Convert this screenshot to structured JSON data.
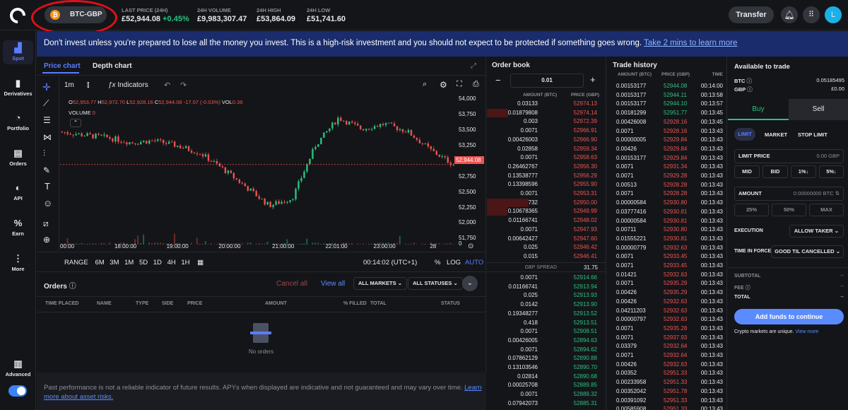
{
  "header": {
    "pair": "BTC-GBP",
    "stats": [
      {
        "label": "LAST PRICE (24H)",
        "value": "£52,944.08",
        "change": "+0.45%"
      },
      {
        "label": "24H VOLUME",
        "value": "£9,983,307.47"
      },
      {
        "label": "24H HIGH",
        "value": "£53,864.09"
      },
      {
        "label": "24H LOW",
        "value": "£51,741.60"
      }
    ],
    "transfer": "Transfer",
    "avatar": "L"
  },
  "nav": [
    "Spot",
    "Derivatives",
    "Portfolio",
    "Orders",
    "API",
    "Earn",
    "More"
  ],
  "nav_advanced": "Advanced",
  "banner": {
    "text": "Don't invest unless you're prepared to lose all the money you invest. This is a high-risk investment and you should not expect to be protected if something goes wrong.",
    "link": "Take 2 mins to learn more"
  },
  "chart": {
    "tabs": [
      "Price chart",
      "Depth chart"
    ],
    "interval": "1m",
    "indicators": "Indicators",
    "ohlc": {
      "o": "52,953.77",
      "h": "52,972.70",
      "l": "52,928.16",
      "c": "52,944.08",
      "chg": "-17.07 (-0.03%)",
      "vol": "0.36"
    },
    "volume_label": "VOLUME",
    "volume_val": "0",
    "price_ticks": [
      "54,000",
      "53,750",
      "53,500",
      "53,250",
      "53,000",
      "52,750",
      "52,500",
      "52,250",
      "52,000",
      "51,750",
      "0"
    ],
    "last_price_tag": "52,944.08",
    "time_ticks": [
      "00:00",
      "18:00:00",
      "19:00:00",
      "20:00:00",
      "21:00:00",
      "22:01:00",
      "23:00:00",
      "28"
    ],
    "ranges": [
      "RANGE",
      "6M",
      "3M",
      "1M",
      "5D",
      "1D",
      "4H",
      "1H"
    ],
    "clock": "00:14:02 (UTC+1)",
    "pct": "%",
    "log": "LOG",
    "auto": "AUTO",
    "chart_data": {
      "type": "line",
      "title": "",
      "xlabel": "",
      "ylabel": "",
      "ylim": [
        51650,
        54050
      ],
      "x": [
        "17:30",
        "18:00",
        "18:30",
        "19:00",
        "19:30",
        "20:00",
        "20:30",
        "21:00",
        "21:15",
        "21:30",
        "21:45",
        "22:00",
        "22:15",
        "22:30",
        "23:00",
        "23:30",
        "00:00",
        "00:14"
      ],
      "series": [
        {
          "values": [
            53470,
            53420,
            53380,
            53300,
            53330,
            53250,
            53130,
            52870,
            52580,
            52280,
            52400,
            53250,
            53700,
            53520,
            53600,
            53480,
            53180,
            52944
          ]
        }
      ]
    }
  },
  "orders": {
    "title": "Orders",
    "cancel_all": "Cancel all",
    "view_all": "View all",
    "markets": "ALL MARKETS",
    "statuses": "ALL STATUSES",
    "columns": [
      "TIME PLACED",
      "NAME",
      "TYPE",
      "SIDE",
      "PRICE",
      "AMOUNT",
      "% FILLED",
      "TOTAL",
      "STATUS"
    ],
    "empty": "No orders"
  },
  "disclaimer": {
    "text": "Past performance is not a reliable indicator of future results. APYs when displayed are indicative and not guaranteed and may vary over time.",
    "link": "Learn more about asset risks."
  },
  "orderbook": {
    "title": "Order book",
    "step": "0.01",
    "col_amount": "AMOUNT (BTC)",
    "col_price": "PRICE (GBP)",
    "asks": [
      [
        "0.03133",
        "52974.13"
      ],
      [
        "0.01879808",
        "52974.14"
      ],
      [
        "0.003",
        "52972.39"
      ],
      [
        "0.0071",
        "52966.91"
      ],
      [
        "0.00426003",
        "52966.90"
      ],
      [
        "0.02858",
        "52959.34"
      ],
      [
        "0.0071",
        "52958.63"
      ],
      [
        "0.26462767",
        "52956.30"
      ],
      [
        "0.13538777",
        "52956.29"
      ],
      [
        "0.13398596",
        "52955.90"
      ],
      [
        "0.0071",
        "52953.31"
      ],
      [
        "1.92522732",
        "52950.00"
      ],
      [
        "0.10678365",
        "52949.99"
      ],
      [
        "0.01166741",
        "52948.02"
      ],
      [
        "0.0071",
        "52947.93"
      ],
      [
        "0.00642427",
        "52947.60"
      ],
      [
        "0.025",
        "52946.42"
      ],
      [
        "0.015",
        "52946.41"
      ]
    ],
    "spread_label": "GBP SPREAD",
    "spread": "31.75",
    "bids": [
      [
        "0.0071",
        "52914.66"
      ],
      [
        "0.01166741",
        "52913.94"
      ],
      [
        "0.025",
        "52913.93"
      ],
      [
        "0.0142",
        "52913.90"
      ],
      [
        "0.19348277",
        "52913.52"
      ],
      [
        "0.418",
        "52913.51"
      ],
      [
        "0.0071",
        "52908.51"
      ],
      [
        "0.00426005",
        "52894.63"
      ],
      [
        "0.0071",
        "52894.62"
      ],
      [
        "0.07862129",
        "52890.88"
      ],
      [
        "0.13103546",
        "52890.70"
      ],
      [
        "0.02814",
        "52890.68"
      ],
      [
        "0.00025708",
        "52889.85"
      ],
      [
        "0.0071",
        "52889.32"
      ],
      [
        "0.07942073",
        "52885.31"
      ]
    ]
  },
  "trades": {
    "title": "Trade history",
    "col_amount": "AMOUNT (BTC)",
    "col_price": "PRICE (GBP)",
    "col_time": "TIME",
    "rows": [
      [
        "0.00153177",
        "52944.08",
        "00:14:00",
        "g"
      ],
      [
        "0.00153177",
        "52944.11",
        "00:13:58",
        "g"
      ],
      [
        "0.00153177",
        "52944.10",
        "00:13:57",
        "g"
      ],
      [
        "0.00181299",
        "52951.77",
        "00:13:45",
        "g"
      ],
      [
        "0.00426008",
        "52928.16",
        "00:13:45",
        "r"
      ],
      [
        "0.0071",
        "52928.16",
        "00:13:43",
        "r"
      ],
      [
        "0.00000005",
        "52929.84",
        "00:13:43",
        "r"
      ],
      [
        "0.00426",
        "52929.84",
        "00:13:43",
        "r"
      ],
      [
        "0.00153177",
        "52929.84",
        "00:13:43",
        "r"
      ],
      [
        "0.0071",
        "52931.34",
        "00:13:43",
        "r"
      ],
      [
        "0.0071",
        "52929.28",
        "00:13:43",
        "r"
      ],
      [
        "0.00513",
        "52928.28",
        "00:13:43",
        "r"
      ],
      [
        "0.0071",
        "52928.28",
        "00:13:43",
        "r"
      ],
      [
        "0.00000584",
        "52930.80",
        "00:13:43",
        "r"
      ],
      [
        "0.03777416",
        "52930.81",
        "00:13:43",
        "r"
      ],
      [
        "0.00000584",
        "52930.81",
        "00:13:43",
        "r"
      ],
      [
        "0.00711",
        "52930.80",
        "00:13:43",
        "r"
      ],
      [
        "0.01555221",
        "52930.81",
        "00:13:43",
        "r"
      ],
      [
        "0.00000779",
        "52932.63",
        "00:13:43",
        "r"
      ],
      [
        "0.0071",
        "52933.45",
        "00:13:43",
        "r"
      ],
      [
        "0.0071",
        "52933.45",
        "00:13:43",
        "r"
      ],
      [
        "0.01421",
        "52932.63",
        "00:13:43",
        "r"
      ],
      [
        "0.0071",
        "52935.29",
        "00:13:43",
        "r"
      ],
      [
        "0.00426",
        "52935.29",
        "00:13:43",
        "r"
      ],
      [
        "0.00426",
        "52932.63",
        "00:13:43",
        "r"
      ],
      [
        "0.04211203",
        "52932.63",
        "00:13:43",
        "r"
      ],
      [
        "0.00000797",
        "52932.63",
        "00:13:43",
        "r"
      ],
      [
        "0.0071",
        "52935.28",
        "00:13:43",
        "r"
      ],
      [
        "0.0071",
        "52937.93",
        "00:13:43",
        "r"
      ],
      [
        "0.03379",
        "52932.64",
        "00:13:43",
        "r"
      ],
      [
        "0.0071",
        "52932.64",
        "00:13:43",
        "r"
      ],
      [
        "0.00426",
        "52932.63",
        "00:13:43",
        "r"
      ],
      [
        "0.00352",
        "52951.33",
        "00:13:43",
        "r"
      ],
      [
        "0.00233958",
        "52951.33",
        "00:13:43",
        "r"
      ],
      [
        "0.00352042",
        "52951.78",
        "00:13:43",
        "r"
      ],
      [
        "0.00391092",
        "52951.33",
        "00:13:43",
        "r"
      ],
      [
        "0.00585908",
        "52951.33",
        "00:13:43",
        "r"
      ]
    ]
  },
  "trade": {
    "available": "Available to trade",
    "btc_label": "BTC",
    "btc": "0.05185495",
    "gbp_label": "GBP",
    "gbp": "£0.00",
    "buy": "Buy",
    "sell": "Sell",
    "types": [
      "LIMIT",
      "MARKET",
      "STOP LIMIT"
    ],
    "limit_price": "LIMIT PRICE",
    "limit_val": "0.00",
    "limit_unit": "GBP",
    "quick": [
      "MID",
      "BID",
      "1%↓",
      "5%↓"
    ],
    "amount": "AMOUNT",
    "amount_val": "0.00000000",
    "amount_unit": "BTC",
    "pcts": [
      "25%",
      "50%",
      "MAX"
    ],
    "execution": "EXECUTION",
    "execution_val": "ALLOW TAKER",
    "tif": "TIME IN FORCE",
    "tif_val": "GOOD TIL CANCELLED",
    "subtotal": "SUBTOTAL",
    "fee": "FEE",
    "total": "TOTAL",
    "dash": "--",
    "add_funds": "Add funds to continue",
    "unique": "Crypto markets are unique.",
    "view_more": "View more"
  },
  "colors": {
    "accent": "#5b7cff",
    "green": "#29c37f",
    "red": "#f05350",
    "annotation": "#e0101a"
  }
}
